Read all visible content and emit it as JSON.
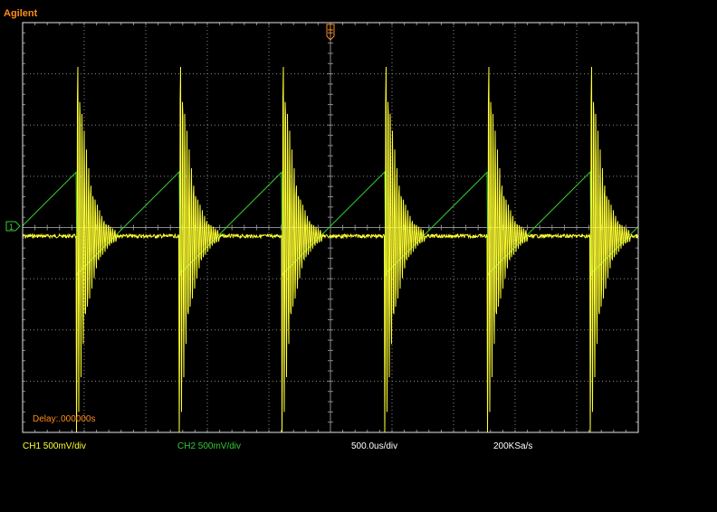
{
  "brand": {
    "text": "Agilent",
    "color": "#ff8c1a"
  },
  "colors": {
    "ch1": "#ffff33",
    "ch2": "#33cc33",
    "grid": "#8a8a8a",
    "frame": "#e6e6e6",
    "trigger": "#ff8c1a",
    "delay": "#ff8c1a"
  },
  "markers": {
    "ch1_ground_icon": "ground-marker-icon",
    "trigger_icon": "trigger-marker-icon"
  },
  "display": {
    "divisions_x": 10,
    "divisions_y": 8
  },
  "delay_text": "Delay:.000000s",
  "status_bar": {
    "ch1": "CH1 500mV/div",
    "ch2": "CH2 500mV/div",
    "timebase": "500.0us/div",
    "sample_rate": "200KSa/s"
  }
}
